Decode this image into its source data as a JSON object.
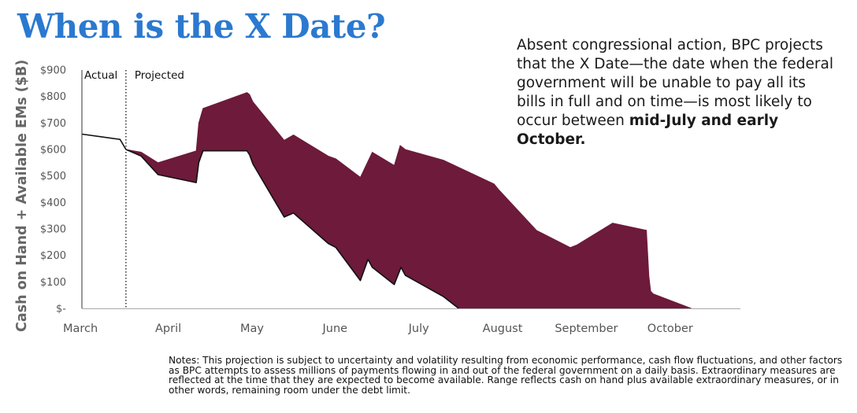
{
  "title": "When is the X Date?",
  "callout": {
    "text": "Absent congressional action, BPC projects that the X Date—the date when the federal government will be unable to pay all its bills in full and on time—is most likely to occur between ",
    "bold": "mid-July and early October."
  },
  "notes": "Notes: This projection is subject to uncertainty and volatility resulting from economic performance, cash flow fluctuations, and other factors as BPC attempts to assess millions of payments flowing in and out of the federal government on a daily basis. Extraordinary measures are reflected at the time that they are expected to become available. Range reflects cash on hand plus available extraordinary measures, or in other words, remaining room under the debt limit.",
  "colors": {
    "title": "#2b79d0",
    "band": "#6d1a3b",
    "lower_line": "#111111",
    "axis_text": "#555555"
  },
  "chart_data": {
    "type": "area",
    "ylabel": "Cash on Hand + Available EMs ($B)",
    "ylim": [
      0,
      900
    ],
    "yticks": [
      0,
      100,
      200,
      300,
      400,
      500,
      600,
      700,
      800,
      900
    ],
    "ytick_labels": [
      "$-",
      "$100",
      "$200",
      "$300",
      "$400",
      "$500",
      "$600",
      "$700",
      "$800",
      "$900"
    ],
    "xlim": [
      0,
      7.78
    ],
    "xticks": [
      {
        "label": "March",
        "x": 0
      },
      {
        "label": "April",
        "x": 1.02
      },
      {
        "label": "May",
        "x": 2.01
      },
      {
        "label": "June",
        "x": 2.99
      },
      {
        "label": "July",
        "x": 3.98
      },
      {
        "label": "August",
        "x": 4.97
      },
      {
        "label": "September",
        "x": 5.96
      },
      {
        "label": "October",
        "x": 6.95
      }
    ],
    "divider": {
      "x": 0.52,
      "left_label": "Actual",
      "right_label": "Projected"
    },
    "actual": [
      [
        0,
        658
      ],
      [
        0.45,
        638
      ],
      [
        0.52,
        600
      ]
    ],
    "upper": [
      [
        0.52,
        600
      ],
      [
        0.7,
        590
      ],
      [
        0.9,
        550
      ],
      [
        1.35,
        595
      ],
      [
        1.38,
        700
      ],
      [
        1.43,
        755
      ],
      [
        1.95,
        815
      ],
      [
        1.98,
        808
      ],
      [
        2.02,
        780
      ],
      [
        2.39,
        635
      ],
      [
        2.5,
        655
      ],
      [
        2.91,
        575
      ],
      [
        3.0,
        565
      ],
      [
        3.29,
        495
      ],
      [
        3.43,
        590
      ],
      [
        3.69,
        540
      ],
      [
        3.76,
        615
      ],
      [
        3.82,
        600
      ],
      [
        4.27,
        560
      ],
      [
        4.87,
        470
      ],
      [
        4.92,
        450
      ],
      [
        5.37,
        295
      ],
      [
        5.77,
        230
      ],
      [
        5.85,
        240
      ],
      [
        6.27,
        322
      ],
      [
        6.67,
        295
      ],
      [
        6.7,
        120
      ],
      [
        6.72,
        65
      ],
      [
        6.75,
        55
      ],
      [
        7.2,
        0
      ]
    ],
    "lower": [
      [
        0.52,
        600
      ],
      [
        0.7,
        575
      ],
      [
        0.9,
        505
      ],
      [
        1.35,
        475
      ],
      [
        1.38,
        550
      ],
      [
        1.43,
        595
      ],
      [
        1.95,
        595
      ],
      [
        1.98,
        580
      ],
      [
        2.02,
        545
      ],
      [
        2.39,
        345
      ],
      [
        2.5,
        360
      ],
      [
        2.91,
        245
      ],
      [
        3.0,
        230
      ],
      [
        3.29,
        105
      ],
      [
        3.38,
        185
      ],
      [
        3.43,
        155
      ],
      [
        3.69,
        90
      ],
      [
        3.77,
        155
      ],
      [
        3.82,
        125
      ],
      [
        4.27,
        45
      ],
      [
        4.45,
        0
      ]
    ]
  }
}
